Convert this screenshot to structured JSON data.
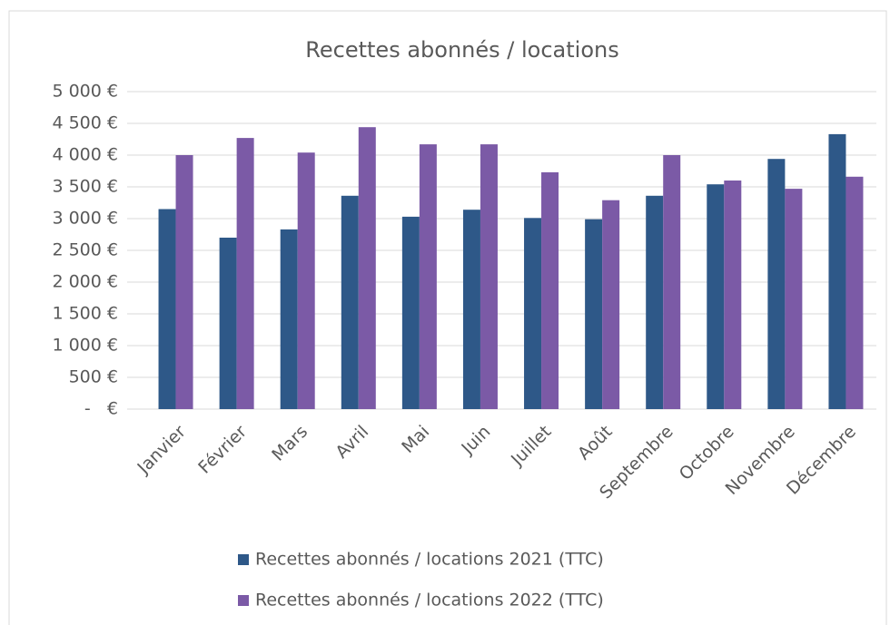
{
  "chart_data": {
    "type": "bar",
    "title": "Recettes abonnés / locations",
    "categories": [
      "Janvier",
      "Février",
      "Mars",
      "Avril",
      "Mai",
      "Juin",
      "Juillet",
      "Août",
      "Septembre",
      "Octobre",
      "Novembre",
      "Décembre"
    ],
    "series": [
      {
        "name": "Recettes abonnés / locations 2021 (TTC)",
        "color": "#2e5888",
        "values": [
          3150,
          2700,
          2830,
          3360,
          3030,
          3140,
          3010,
          2990,
          3360,
          3540,
          3940,
          4330
        ]
      },
      {
        "name": "Recettes abonnés / locations 2022 (TTC)",
        "color": "#7b5aa6",
        "values": [
          4000,
          4270,
          4040,
          4440,
          4170,
          4170,
          3730,
          3290,
          4000,
          3600,
          3470,
          3660
        ]
      }
    ],
    "ylim": [
      0,
      5000
    ],
    "yticks": [
      {
        "value": 0,
        "label": "-   €"
      },
      {
        "value": 500,
        "label": "500 €"
      },
      {
        "value": 1000,
        "label": "1 000 €"
      },
      {
        "value": 1500,
        "label": "1 500 €"
      },
      {
        "value": 2000,
        "label": "2 000 €"
      },
      {
        "value": 2500,
        "label": "2 500 €"
      },
      {
        "value": 3000,
        "label": "3 000 €"
      },
      {
        "value": 3500,
        "label": "3 500 €"
      },
      {
        "value": 4000,
        "label": "4 000 €"
      },
      {
        "value": 4500,
        "label": "4 500 €"
      },
      {
        "value": 5000,
        "label": "5 000 €"
      }
    ],
    "grid": true,
    "legend": "bottom"
  }
}
